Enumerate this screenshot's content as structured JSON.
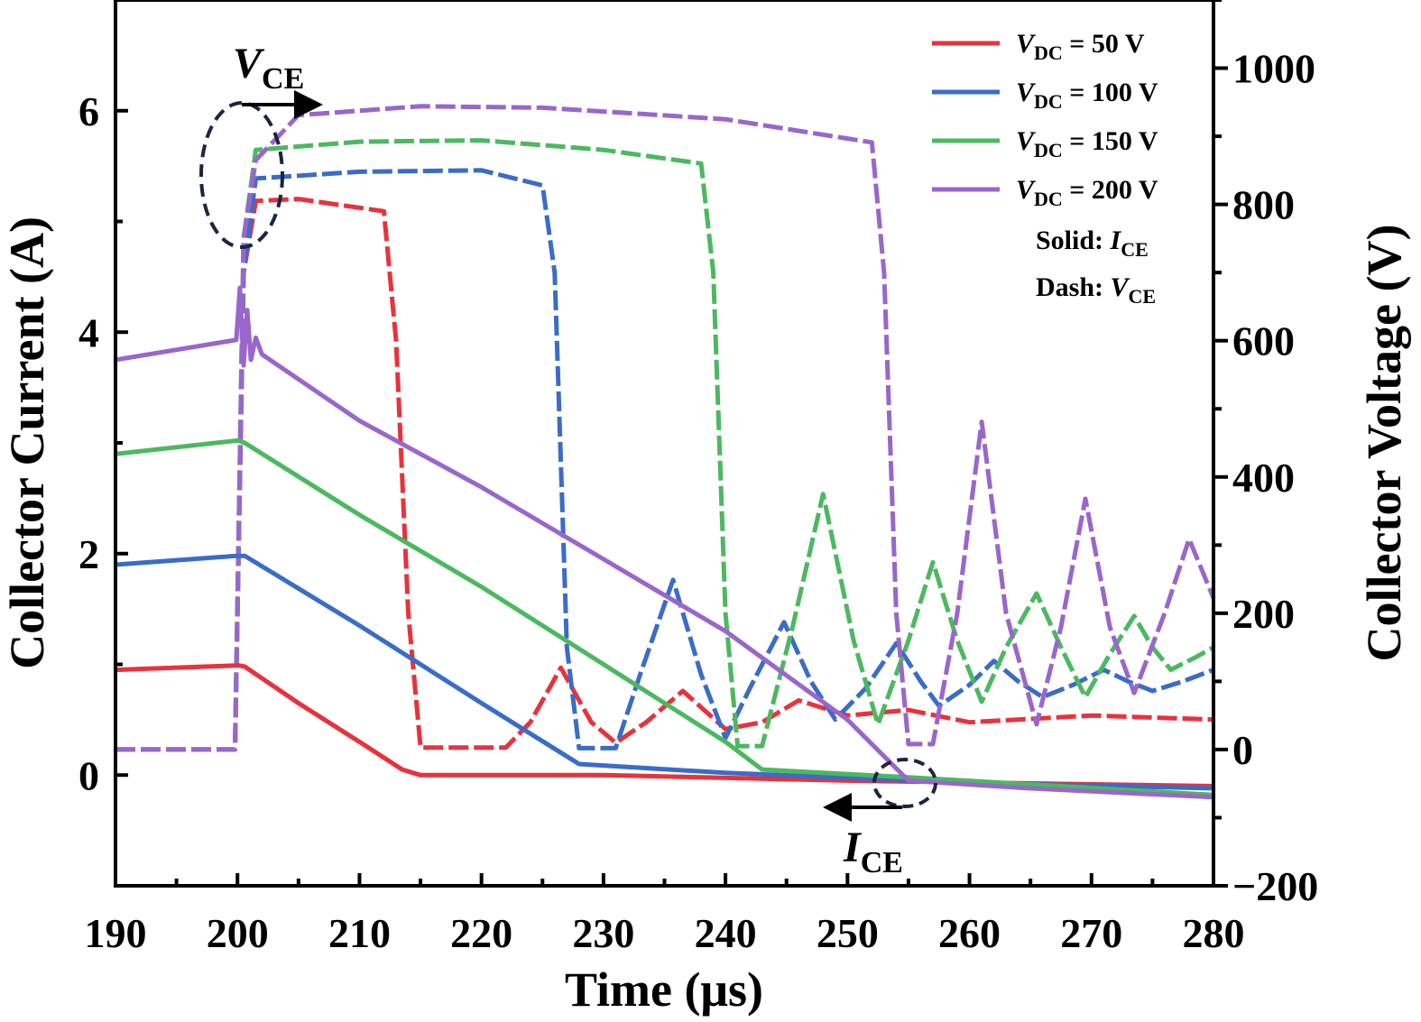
{
  "chart_data": {
    "type": "line",
    "xlabel": "Time (μs)",
    "ylabel_left": "Collector Current (A)",
    "ylabel_right": "Collector Voltage (V)",
    "xlim": [
      190,
      280
    ],
    "ylim_left": [
      -1,
      7
    ],
    "ylim_right": [
      -200,
      1100
    ],
    "xticks": [
      190,
      200,
      210,
      220,
      230,
      240,
      250,
      260,
      270,
      280
    ],
    "yticks_left": [
      0,
      2,
      4,
      6
    ],
    "yticks_right": [
      -200,
      0,
      200,
      400,
      600,
      800,
      1000
    ],
    "legend_position": "top-right",
    "legend": [
      {
        "label_main": "V",
        "label_sub": "DC",
        "label_rest": " = 50 V",
        "color": "#e8323c"
      },
      {
        "label_main": "V",
        "label_sub": "DC",
        "label_rest": " = 100 V",
        "color": "#3a6cc8"
      },
      {
        "label_main": "V",
        "label_sub": "DC",
        "label_rest": " = 150 V",
        "color": "#4cb860"
      },
      {
        "label_main": "V",
        "label_sub": "DC",
        "label_rest": " = 200 V",
        "color": "#9966cc"
      }
    ],
    "style_note_solid": {
      "prefix": "Solid: ",
      "main": "I",
      "sub": "CE"
    },
    "style_note_dash": {
      "prefix": "Dash: ",
      "main": "V",
      "sub": "CE"
    },
    "annotations": {
      "vce": {
        "main": "V",
        "sub": "CE"
      },
      "ice": {
        "main": "I",
        "sub": "CE"
      }
    },
    "series": [
      {
        "name": "I_CE 50 V",
        "axis": "left",
        "dash": false,
        "color": "#e8323c",
        "x": [
          190,
          199.9,
          200.1,
          200.6,
          205,
          210,
          213.5,
          215,
          230,
          250,
          280
        ],
        "y": [
          0.95,
          0.99,
          0.99,
          0.98,
          0.65,
          0.3,
          0.05,
          0.0,
          0.0,
          -0.05,
          -0.1
        ]
      },
      {
        "name": "I_CE 100 V",
        "axis": "left",
        "dash": false,
        "color": "#3a6cc8",
        "x": [
          190,
          199.9,
          200.1,
          200.6,
          210,
          220,
          228,
          240,
          260,
          280
        ],
        "y": [
          1.9,
          1.98,
          1.98,
          1.98,
          1.35,
          0.65,
          0.1,
          0.02,
          -0.07,
          -0.12
        ]
      },
      {
        "name": "I_CE 150 V",
        "axis": "left",
        "dash": false,
        "color": "#4cb860",
        "x": [
          190,
          199.9,
          200.1,
          200.6,
          210,
          220,
          230,
          240,
          243,
          255,
          280
        ],
        "y": [
          2.9,
          3.02,
          3.02,
          3.0,
          2.35,
          1.7,
          1.0,
          0.3,
          0.05,
          -0.02,
          -0.18
        ]
      },
      {
        "name": "I_CE 200 V",
        "axis": "left",
        "dash": false,
        "color": "#9966cc",
        "x": [
          190,
          199.9,
          200.2,
          200.5,
          200.8,
          201.1,
          201.5,
          202,
          210,
          220,
          230,
          240,
          250,
          255,
          265,
          280
        ],
        "y": [
          3.75,
          3.93,
          4.4,
          3.7,
          4.2,
          3.75,
          3.95,
          3.8,
          3.2,
          2.6,
          1.95,
          1.3,
          0.5,
          -0.05,
          -0.12,
          -0.2
        ]
      },
      {
        "name": "V_CE 50 V",
        "axis": "right",
        "dash": true,
        "color": "#e8323c",
        "x": [
          190,
          199.8,
          200.5,
          201.5,
          205,
          212,
          213,
          214,
          215,
          222,
          224,
          226.5,
          229,
          231,
          233.5,
          236.5,
          240,
          243,
          246,
          250,
          255,
          260,
          270,
          280
        ],
        "y": [
          0,
          0,
          700,
          805,
          808,
          790,
          600,
          200,
          3,
          3,
          40,
          120,
          40,
          10,
          40,
          86,
          30,
          40,
          72,
          50,
          58,
          40,
          50,
          44
        ]
      },
      {
        "name": "V_CE 100 V",
        "axis": "right",
        "dash": true,
        "color": "#3a6cc8",
        "x": [
          190,
          199.8,
          200.5,
          201.5,
          210,
          220,
          225,
          226,
          227,
          228,
          231,
          233,
          235.7,
          238,
          240,
          242,
          244.8,
          247,
          249,
          251.5,
          254,
          256,
          257.5,
          260,
          262,
          264,
          266,
          268.5,
          271,
          273,
          275,
          277.5,
          280
        ],
        "y": [
          0,
          0,
          700,
          838,
          848,
          850,
          828,
          700,
          150,
          2,
          2,
          110,
          249,
          110,
          17,
          90,
          187,
          100,
          44,
          90,
          156,
          100,
          64,
          95,
          130,
          100,
          77,
          95,
          117,
          100,
          86,
          100,
          117
        ]
      },
      {
        "name": "V_CE 150 V",
        "axis": "right",
        "dash": true,
        "color": "#4cb860",
        "x": [
          190,
          199.8,
          200.5,
          201.5,
          210,
          220,
          230,
          238,
          239,
          240,
          241,
          243,
          245.5,
          248,
          250.5,
          252.5,
          255,
          257,
          259,
          261,
          263,
          265.5,
          267.5,
          269.5,
          271.5,
          273.5,
          275,
          276.5,
          278.5,
          280
        ],
        "y": [
          0,
          0,
          750,
          880,
          892,
          894,
          880,
          860,
          700,
          200,
          5,
          5,
          180,
          375,
          160,
          37,
          160,
          275,
          160,
          70,
          150,
          229,
          150,
          77,
          140,
          196,
          150,
          117,
          135,
          150
        ]
      },
      {
        "name": "V_CE 200 V",
        "axis": "right",
        "dash": true,
        "color": "#9966cc",
        "x": [
          190,
          199.8,
          200.5,
          201.5,
          205,
          215,
          225,
          240,
          252,
          253,
          254,
          255,
          257,
          259,
          261,
          263,
          265.5,
          267.5,
          269.5,
          271.5,
          273.5,
          276,
          278,
          280
        ],
        "y": [
          0,
          0,
          750,
          865,
          931,
          944,
          942,
          925,
          891,
          700,
          200,
          8,
          8,
          200,
          481,
          200,
          37,
          180,
          368,
          180,
          83,
          200,
          309,
          222
        ]
      }
    ]
  }
}
